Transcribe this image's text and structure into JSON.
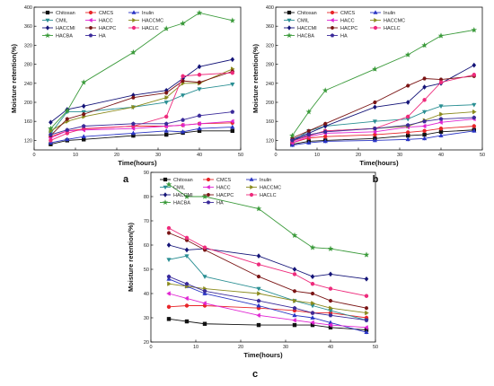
{
  "colors": {
    "Chitosan": "#111111",
    "CMCS": "#e8262a",
    "Inulin": "#2a35c4",
    "CMIL": "#2a8f93",
    "HACC": "#e025d2",
    "HACCMC": "#8a8a1c",
    "HACCMI": "#141478",
    "HACPC": "#7a1414",
    "HACLC": "#ee2b7c",
    "HACBA": "#3a9a3a",
    "HA": "#3a2a9a"
  },
  "markers": {
    "Chitosan": "square",
    "CMCS": "circle",
    "Inulin": "triangle-up",
    "CMIL": "triangle-down",
    "HACC": "triangle-left",
    "HACCMC": "triangle-right",
    "HACCMI": "diamond",
    "HACPC": "hexagon",
    "HACLC": "circle",
    "HACBA": "star",
    "HA": "pentagon"
  },
  "chart_data": [
    {
      "panel": "a",
      "type": "line",
      "xlabel": "Time(hours)",
      "ylabel": "Moisture retention(%)",
      "xlim": [
        0,
        50
      ],
      "ylim": [
        100,
        400
      ],
      "xticks": [
        0,
        10,
        20,
        30,
        40,
        50
      ],
      "yticks": [
        120,
        160,
        200,
        240,
        280,
        320,
        360,
        400
      ],
      "x": [
        4,
        8,
        12,
        24,
        32,
        36,
        40,
        48
      ],
      "legend": [
        "Chitosan",
        "CMCS",
        "Inulin",
        "CMIL",
        "HACC",
        "HACCMC",
        "HACCMI",
        "HACPC",
        "HACLC",
        "HACBA",
        "HA"
      ],
      "series": [
        {
          "name": "Chitosan",
          "values": [
            112,
            120,
            122,
            130,
            132,
            136,
            140,
            140
          ]
        },
        {
          "name": "CMCS",
          "values": [
            128,
            140,
            144,
            150,
            150,
            152,
            155,
            157
          ]
        },
        {
          "name": "Inulin",
          "values": [
            115,
            122,
            128,
            135,
            140,
            138,
            145,
            148
          ]
        },
        {
          "name": "CMIL",
          "values": [
            135,
            180,
            180,
            190,
            200,
            215,
            228,
            238
          ]
        },
        {
          "name": "HACC",
          "values": [
            125,
            140,
            142,
            145,
            150,
            152,
            155,
            160
          ]
        },
        {
          "name": "HACCMC",
          "values": [
            140,
            160,
            170,
            190,
            210,
            240,
            240,
            270
          ]
        },
        {
          "name": "HACCMI",
          "values": [
            158,
            185,
            192,
            215,
            225,
            250,
            275,
            290
          ]
        },
        {
          "name": "HACPC",
          "values": [
            130,
            165,
            175,
            210,
            220,
            245,
            242,
            265
          ]
        },
        {
          "name": "HACLC",
          "values": [
            120,
            135,
            145,
            150,
            170,
            255,
            258,
            262
          ]
        },
        {
          "name": "HACBA",
          "values": [
            145,
            182,
            242,
            305,
            355,
            366,
            388,
            372
          ]
        },
        {
          "name": "HA",
          "values": [
            132,
            142,
            150,
            155,
            155,
            163,
            172,
            180
          ]
        }
      ]
    },
    {
      "panel": "b",
      "type": "line",
      "xlabel": "Time(hours)",
      "ylabel": "Moisture retention(%)",
      "xlim": [
        0,
        50
      ],
      "ylim": [
        100,
        400
      ],
      "xticks": [
        0,
        10,
        20,
        30,
        40,
        50
      ],
      "yticks": [
        120,
        160,
        200,
        240,
        280,
        320,
        360,
        400
      ],
      "x": [
        4,
        8,
        12,
        24,
        32,
        36,
        40,
        48
      ],
      "legend": [
        "Chitosan",
        "CMCS",
        "Inulin",
        "CMIL",
        "HACC",
        "HACCMC",
        "HACCMI",
        "HACPC",
        "HACLC",
        "HACBA",
        "HA"
      ],
      "series": [
        {
          "name": "Chitosan",
          "values": [
            112,
            118,
            120,
            124,
            130,
            132,
            138,
            142
          ]
        },
        {
          "name": "CMCS",
          "values": [
            115,
            125,
            128,
            132,
            137,
            140,
            145,
            150
          ]
        },
        {
          "name": "Inulin",
          "values": [
            110,
            115,
            118,
            120,
            122,
            124,
            130,
            140
          ]
        },
        {
          "name": "CMIL",
          "values": [
            118,
            140,
            150,
            160,
            165,
            180,
            192,
            195
          ]
        },
        {
          "name": "HACC",
          "values": [
            115,
            128,
            135,
            138,
            148,
            150,
            158,
            165
          ]
        },
        {
          "name": "HACCMC",
          "values": [
            120,
            130,
            140,
            145,
            150,
            162,
            175,
            180
          ]
        },
        {
          "name": "HACCMI",
          "values": [
            122,
            135,
            150,
            190,
            200,
            232,
            240,
            278
          ]
        },
        {
          "name": "HACPC",
          "values": [
            125,
            140,
            155,
            200,
            235,
            250,
            248,
            255
          ]
        },
        {
          "name": "HACLC",
          "values": [
            118,
            130,
            140,
            145,
            170,
            205,
            242,
            258
          ]
        },
        {
          "name": "HACBA",
          "values": [
            130,
            180,
            225,
            270,
            300,
            320,
            340,
            352
          ]
        },
        {
          "name": "HA",
          "values": [
            120,
            132,
            138,
            145,
            152,
            160,
            165,
            168
          ]
        }
      ]
    },
    {
      "panel": "c",
      "type": "line",
      "xlabel": "Time(hours)",
      "ylabel": "Moisture retention(%)",
      "xlim": [
        0,
        50
      ],
      "ylim": [
        20,
        90
      ],
      "xticks": [
        0,
        10,
        20,
        30,
        40,
        50
      ],
      "yticks": [
        20,
        30,
        40,
        50,
        60,
        70,
        80,
        90
      ],
      "x": [
        4,
        8,
        12,
        24,
        32,
        36,
        40,
        48
      ],
      "legend": [
        "Chitosan",
        "CMCS",
        "Inulin",
        "CMIL",
        "HACC",
        "HACCMC",
        "HACCMI",
        "HACPC",
        "HACLC",
        "HACBA",
        "HA"
      ],
      "series": [
        {
          "name": "Chitosan",
          "values": [
            29.5,
            28.5,
            27.5,
            27,
            27,
            27,
            26,
            25
          ]
        },
        {
          "name": "CMCS",
          "values": [
            34.5,
            35,
            35,
            34,
            33,
            32,
            32,
            30
          ]
        },
        {
          "name": "Inulin",
          "values": [
            46,
            43,
            40,
            35,
            31,
            30,
            28,
            24
          ]
        },
        {
          "name": "CMIL",
          "values": [
            54,
            55.5,
            47,
            42,
            37,
            35,
            33,
            29
          ]
        },
        {
          "name": "HACC",
          "values": [
            40,
            38,
            36,
            31,
            29,
            28,
            27,
            26
          ]
        },
        {
          "name": "HACCMC",
          "values": [
            44,
            43,
            42,
            40,
            37,
            36,
            34,
            32
          ]
        },
        {
          "name": "HACCMI",
          "values": [
            60,
            58,
            58.5,
            55.5,
            50,
            47,
            48,
            46
          ]
        },
        {
          "name": "HACPC",
          "values": [
            65,
            62,
            58,
            47,
            41,
            40,
            37,
            34
          ]
        },
        {
          "name": "HACLC",
          "values": [
            67,
            63,
            59,
            52,
            48,
            44,
            42,
            39
          ]
        },
        {
          "name": "HACBA",
          "values": [
            85,
            80,
            80,
            75,
            64,
            59,
            58.5,
            56
          ]
        },
        {
          "name": "HA",
          "values": [
            47,
            44,
            41,
            37,
            34,
            32,
            31,
            29
          ]
        }
      ]
    }
  ]
}
